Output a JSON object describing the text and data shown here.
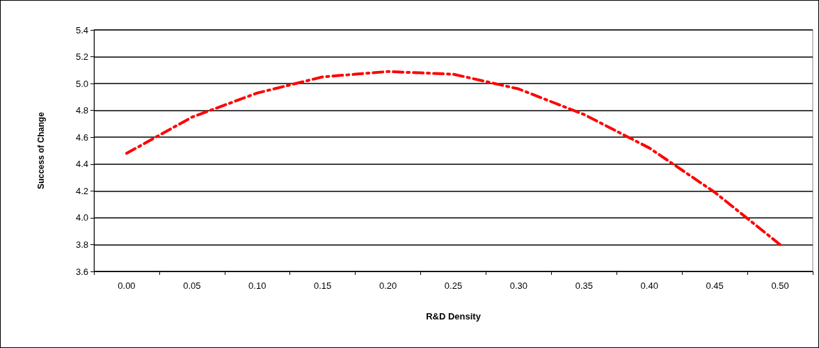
{
  "chart_data": {
    "type": "line",
    "xlabel": "R&D Density",
    "ylabel": "Success of Change",
    "categories": [
      "0.00",
      "0.05",
      "0.10",
      "0.15",
      "0.20",
      "0.25",
      "0.30",
      "0.35",
      "0.40",
      "0.45",
      "0.50"
    ],
    "series": [
      {
        "color": "#ff0000",
        "values": [
          4.48,
          4.75,
          4.93,
          5.05,
          5.09,
          5.07,
          4.96,
          4.77,
          4.52,
          4.19,
          3.8
        ]
      }
    ],
    "ylim": [
      3.6,
      5.4
    ],
    "yticks": [
      3.6,
      3.8,
      {
        "value": 4,
        "label": "4.0"
      },
      4.2,
      4.4,
      4.6,
      4.8,
      {
        "value": 5,
        "label": "5.0"
      },
      5.2,
      5.4
    ],
    "grid": "y",
    "marker": "none",
    "line_style": "dashed"
  }
}
